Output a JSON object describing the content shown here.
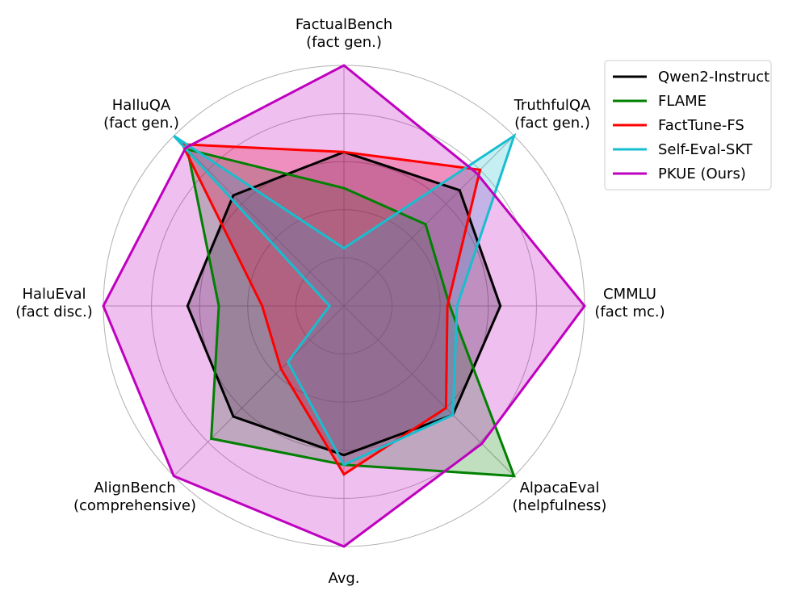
{
  "chart_data": {
    "type": "radar",
    "title": "",
    "axes": [
      {
        "line1": "FactualBench",
        "line2": "(fact gen.)"
      },
      {
        "line1": "TruthfulQA",
        "line2": "(fact gen.)"
      },
      {
        "line1": "CMMLU",
        "line2": "(fact mc.)"
      },
      {
        "line1": "AlpacaEval",
        "line2": "(helpfulness)"
      },
      {
        "line1": "Avg.",
        "line2": ""
      },
      {
        "line1": "AlignBench",
        "line2": "(comprehensive)"
      },
      {
        "line1": "HaluEval",
        "line2": "(fact disc.)"
      },
      {
        "line1": "HalluQA",
        "line2": "(fact gen.)"
      }
    ],
    "rlim": [
      0,
      1
    ],
    "rgrid": [
      0.2,
      0.4,
      0.6,
      0.8,
      1.0
    ],
    "grid": true,
    "legend_position": "top-right",
    "series": [
      {
        "name": "Qwen2-Instruct",
        "color": "#000000",
        "values": [
          0.64,
          0.68,
          0.65,
          0.64,
          0.62,
          0.65,
          0.65,
          0.65
        ]
      },
      {
        "name": "FLAME",
        "color": "#008000",
        "values": [
          0.49,
          0.48,
          0.44,
          1.0,
          0.66,
          0.78,
          0.52,
          0.92
        ]
      },
      {
        "name": "FactTune-FS",
        "color": "#ff0000",
        "values": [
          0.64,
          0.8,
          0.43,
          0.6,
          0.7,
          0.37,
          0.34,
          0.95
        ]
      },
      {
        "name": "Self-Eval-SKT",
        "color": "#17becf",
        "values": [
          0.24,
          1.0,
          0.47,
          0.64,
          0.66,
          0.33,
          0.06,
          1.0
        ]
      },
      {
        "name": "PKUE (Ours)",
        "color": "#bf00bf",
        "values": [
          1.0,
          0.78,
          1.0,
          0.81,
          1.0,
          1.0,
          1.0,
          0.93
        ]
      }
    ]
  }
}
